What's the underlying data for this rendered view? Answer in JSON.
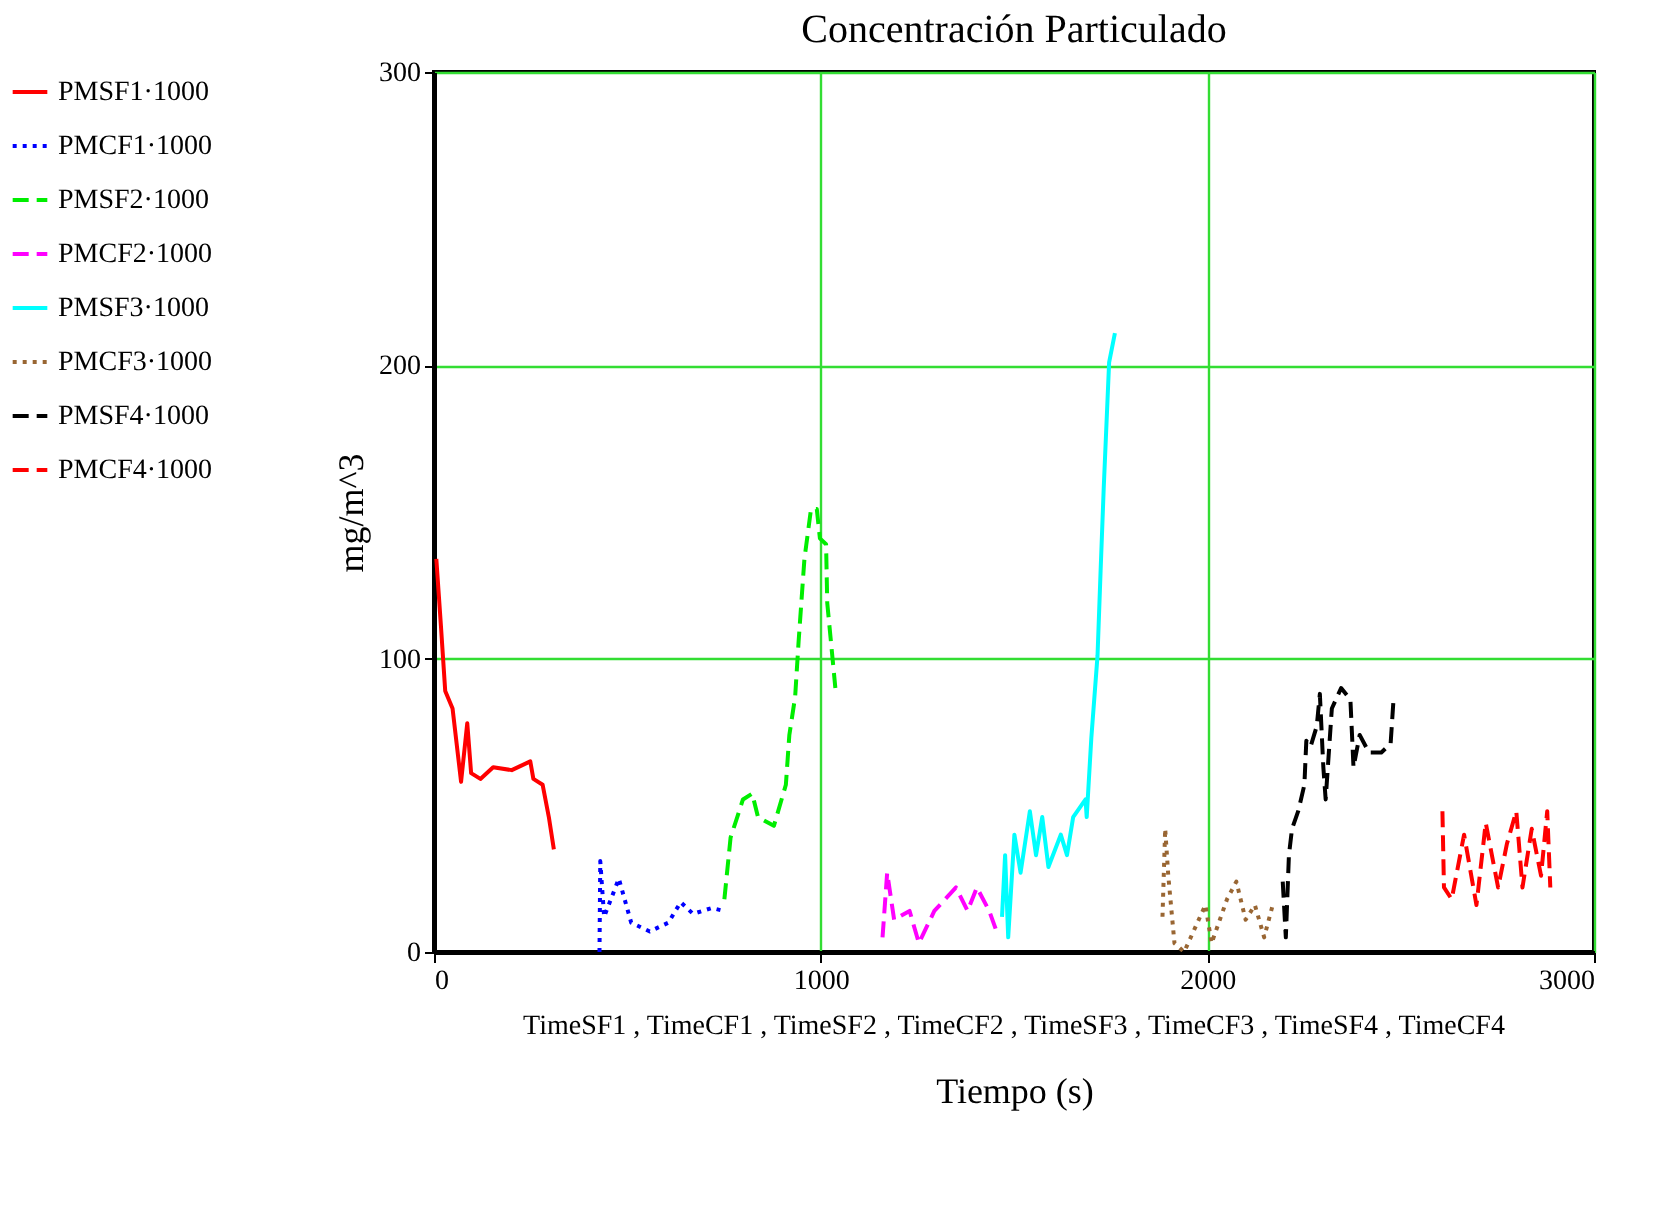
{
  "chart_data": {
    "type": "line",
    "title": "Concentración Particulado",
    "xlabel": "Tiempo (s)",
    "ylabel": "mg/m^3",
    "annotations": [
      "TimeSF1 , TimeCF1 , TimeSF2 , TimeCF2 , TimeSF3 , TimeCF3 , TimeSF4 , TimeCF4"
    ],
    "xlim": [
      0,
      3000
    ],
    "xticks": [
      0,
      1000,
      2000,
      3000
    ],
    "ylim": [
      0,
      300
    ],
    "yticks": [
      0,
      100,
      200,
      300
    ],
    "grid": true,
    "legend": "left",
    "series": [
      {
        "name": "PMSF1·1000",
        "color": "#ff0000",
        "line_style": "solid",
        "x": [
          6,
          18,
          29,
          48,
          70,
          86,
          96,
          120,
          153,
          201,
          249,
          257,
          281,
          297,
          310
        ],
        "values": [
          134,
          111,
          89,
          83,
          58,
          78,
          61,
          59,
          63,
          62,
          65,
          59,
          57,
          46,
          35
        ]
      },
      {
        "name": "PMCF1·1000",
        "color": "#0000ff",
        "line_style": "dotted",
        "x": [
          428,
          430,
          440,
          478,
          510,
          558,
          606,
          638,
          670,
          718,
          750
        ],
        "values": [
          0,
          31,
          12,
          25,
          10,
          7,
          10,
          17,
          13,
          15,
          14
        ]
      },
      {
        "name": "PMSF2·1000",
        "color": "#00ee00",
        "line_style": "dashed",
        "x": [
          751,
          767,
          799,
          823,
          838,
          879,
          910,
          919,
          934,
          943,
          958,
          975,
          990,
          998,
          1014,
          1017,
          1038
        ],
        "values": [
          18,
          39,
          52,
          54,
          46,
          43,
          57,
          74,
          87,
          106,
          134,
          151,
          151,
          141,
          139,
          119,
          90
        ]
      },
      {
        "name": "PMCF2·1000",
        "color": "#ff00ff",
        "line_style": "dashed",
        "x": [
          1160,
          1172,
          1190,
          1230,
          1254,
          1294,
          1350,
          1380,
          1404,
          1436,
          1455
        ],
        "values": [
          5,
          27,
          11,
          14,
          3,
          14,
          22,
          14,
          22,
          14,
          7
        ]
      },
      {
        "name": "PMSF3·1000",
        "color": "#00ffff",
        "line_style": "solid",
        "x": [
          1469,
          1477,
          1485,
          1501,
          1517,
          1541,
          1557,
          1573,
          1589,
          1621,
          1637,
          1653,
          1685,
          1688,
          1700,
          1716,
          1724,
          1732,
          1746,
          1761
        ],
        "values": [
          12,
          33,
          5,
          40,
          27,
          48,
          33,
          46,
          29,
          40,
          33,
          46,
          52,
          46,
          73,
          101,
          130,
          158,
          201,
          211
        ]
      },
      {
        "name": "PMCF3·1000",
        "color": "#996633",
        "line_style": "dotted",
        "x": [
          1884,
          1891,
          1899,
          1915,
          1940,
          1995,
          2011,
          2051,
          2075,
          2099,
          2123,
          2147,
          2171
        ],
        "values": [
          12,
          42,
          26,
          3,
          0,
          16,
          3,
          18,
          24,
          11,
          16,
          5,
          17
        ]
      },
      {
        "name": "PMSF4·1000",
        "color": "#000000",
        "line_style": "dashed",
        "x": [
          2195,
          2203,
          2211,
          2219,
          2235,
          2251,
          2256,
          2267,
          2283,
          2291,
          2300,
          2306,
          2322,
          2346,
          2370,
          2378,
          2394,
          2418,
          2450,
          2474,
          2482
        ],
        "values": [
          24,
          5,
          33,
          42,
          48,
          57,
          72,
          70,
          77,
          88,
          63,
          52,
          83,
          90,
          86,
          63,
          74,
          68,
          68,
          71,
          87
        ]
      },
      {
        "name": "PMCF4·1000",
        "color": "#ff0000",
        "line_style": "dashed",
        "x": [
          2608,
          2612,
          2632,
          2664,
          2696,
          2720,
          2752,
          2775,
          2799,
          2815,
          2839,
          2863,
          2879,
          2887
        ],
        "values": [
          48,
          22,
          18,
          40,
          16,
          44,
          22,
          37,
          48,
          22,
          42,
          26,
          48,
          22
        ]
      }
    ]
  }
}
